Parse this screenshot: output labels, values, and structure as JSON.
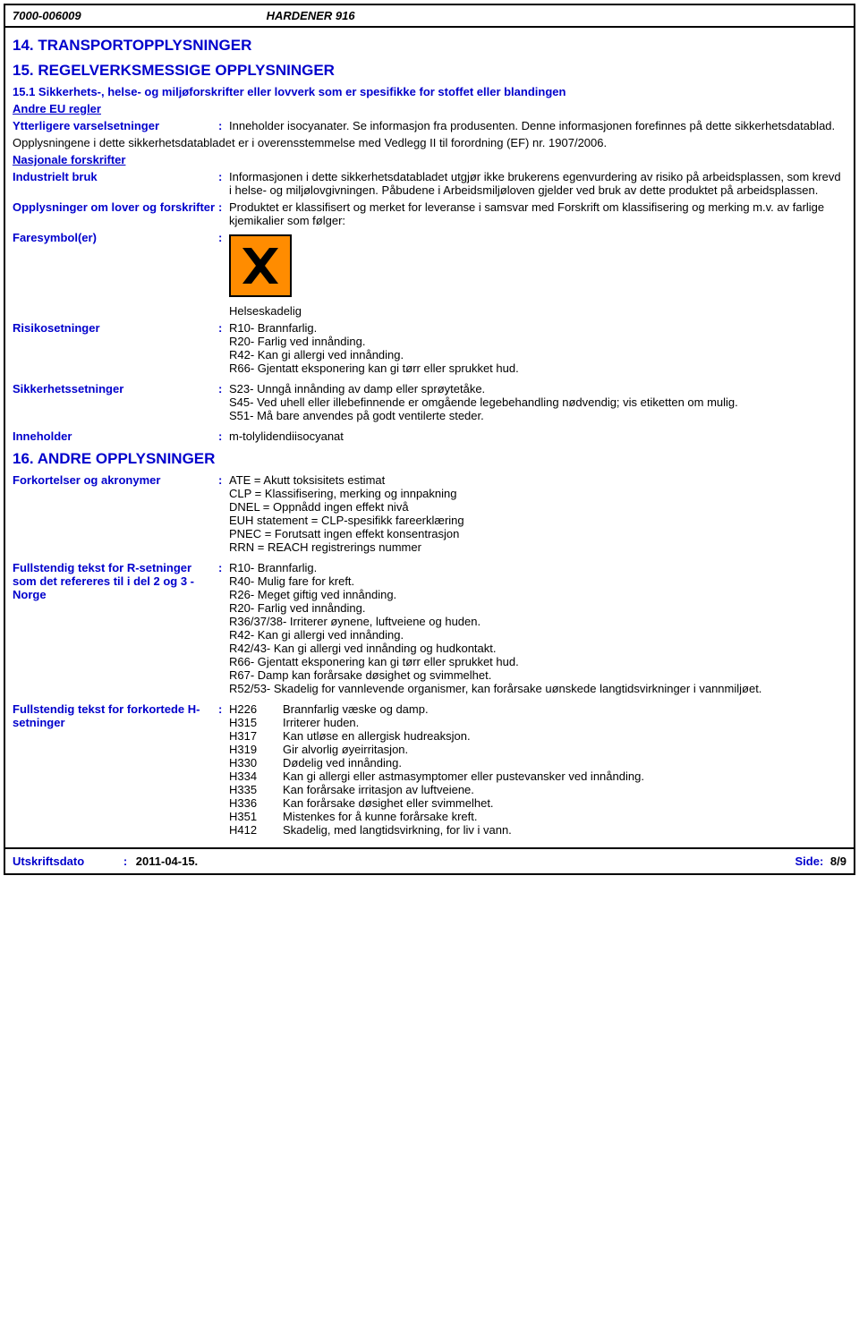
{
  "header": {
    "code": "7000-006009",
    "product": "HARDENER 916"
  },
  "section14": {
    "title": "14. TRANSPORTOPPLYSNINGER"
  },
  "section15": {
    "title": "15. REGELVERKSMESSIGE OPPLYSNINGER",
    "subtitle": "15.1 Sikkerhets-, helse- og miljøforskrifter eller lovverk som er spesifikke for stoffet eller blandingen",
    "andre_eu": "Andre EU regler",
    "ytterligere_label": "Ytterligere varselsetninger",
    "ytterligere_value": "Inneholder isocyanater. Se informasjon fra produsenten. Denne informasjonen forefinnes på dette sikkerhetsdatablad.",
    "opplysningene": "Opplysningene i dette sikkerhetsdatabladet er i overensstemmelse med Vedlegg II til forordning (EF) nr. 1907/2006.",
    "nasjonale": "Nasjonale forskrifter",
    "industrielt_label": "Industrielt bruk",
    "industrielt_value": "Informasjonen i dette sikkerhetsdatabladet utgjør ikke brukerens egenvurdering av risiko på arbeidsplassen, som krevd i helse- og miljølovgivningen. Påbudene i Arbeidsmiljøloven gjelder ved bruk av dette produktet på arbeidsplassen.",
    "opplysninger_label": "Opplysninger om lover og forskrifter",
    "opplysninger_value": "Produktet er klassifisert og merket for leveranse i samsvar med Forskrift om klassifisering og merking m.v. av farlige kjemikalier som følger:",
    "faresymbol_label": "Faresymbol(er)",
    "helseskadelig": "Helseskadelig",
    "risiko_label": "Risikosetninger",
    "risiko_lines": "R10- Brannfarlig.\nR20- Farlig ved innånding.\nR42- Kan gi allergi ved innånding.\nR66- Gjentatt eksponering kan gi tørr eller sprukket hud.",
    "sikkerhet_label": "Sikkerhetssetninger",
    "sikkerhet_lines": "S23- Unngå innånding av damp eller sprøytetåke.\nS45- Ved uhell eller illebefinnende er omgående legebehandling nødvendig; vis etiketten om mulig.\nS51- Må bare anvendes på godt ventilerte steder.",
    "inneholder_label": "Inneholder",
    "inneholder_value": "m-tolylidendiisocyanat"
  },
  "section16": {
    "title": "16. ANDRE OPPLYSNINGER",
    "forkortelser_label": "Forkortelser og akronymer",
    "forkortelser_value": "ATE = Akutt toksisitets estimat\nCLP = Klassifisering, merking og innpakning\nDNEL = Oppnådd ingen effekt nivå\nEUH statement = CLP-spesifikk fareerklæring\nPNEC = Forutsatt ingen effekt konsentrasjon\nRRN = REACH registrerings nummer",
    "fullstendig_r_label": "Fullstendig tekst for R-setninger som det refereres til i del 2 og 3  -  Norge",
    "fullstendig_r_value": "R10- Brannfarlig.\nR40- Mulig fare for kreft.\nR26- Meget giftig ved innånding.\nR20- Farlig ved innånding.\nR36/37/38- Irriterer øynene, luftveiene og huden.\nR42- Kan gi allergi ved innånding.\nR42/43- Kan gi allergi ved innånding og hudkontakt.\nR66- Gjentatt eksponering kan gi tørr eller sprukket hud.\nR67- Damp kan forårsake døsighet og svimmelhet.\nR52/53- Skadelig for vannlevende organismer, kan forårsake uønskede langtidsvirkninger i vannmiljøet.",
    "fullstendig_h_label": "Fullstendig tekst for forkortede H-setninger",
    "h_rows": [
      {
        "code": "H226",
        "text": "Brannfarlig væske og damp."
      },
      {
        "code": "H315",
        "text": "Irriterer huden."
      },
      {
        "code": "H317",
        "text": "Kan utløse en allergisk hudreaksjon."
      },
      {
        "code": "H319",
        "text": "Gir alvorlig øyeirritasjon."
      },
      {
        "code": "H330",
        "text": "Dødelig ved innånding."
      },
      {
        "code": "H334",
        "text": "Kan gi allergi eller astmasymptomer eller pustevansker ved innånding."
      },
      {
        "code": "H335",
        "text": "Kan forårsake irritasjon av luftveiene."
      },
      {
        "code": "H336",
        "text": "Kan forårsake døsighet eller svimmelhet."
      },
      {
        "code": "H351",
        "text": "Mistenkes for å kunne forårsake kreft."
      },
      {
        "code": "H412",
        "text": "Skadelig, med langtidsvirkning, for liv i vann."
      }
    ]
  },
  "footer": {
    "utskrift_label": "Utskriftsdato",
    "utskrift_value": "2011-04-15.",
    "side_label": "Side:",
    "side_value": "8/9"
  }
}
